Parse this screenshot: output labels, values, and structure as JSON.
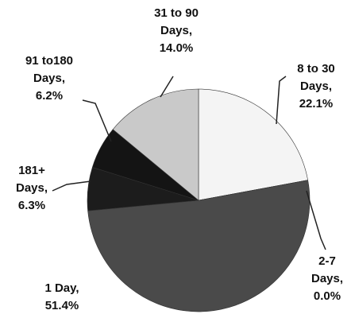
{
  "chart_data": {
    "type": "pie",
    "categories": [
      "8 to 30 Days,",
      "2-7 Days,",
      "1 Day,",
      "181+ Days,",
      "91 to180 Days,",
      "31 to 90 Days,"
    ],
    "values": [
      22.1,
      0.0,
      51.4,
      6.3,
      6.2,
      14.0
    ],
    "value_labels": [
      "22.1%",
      "0.0%",
      "51.4%",
      "6.3%",
      "6.2%",
      "14.0%"
    ],
    "colors": [
      "#f4f4f4",
      "#9a9a9a",
      "#4a4a4a",
      "#1c1c1c",
      "#141414",
      "#c9c9c9"
    ]
  }
}
